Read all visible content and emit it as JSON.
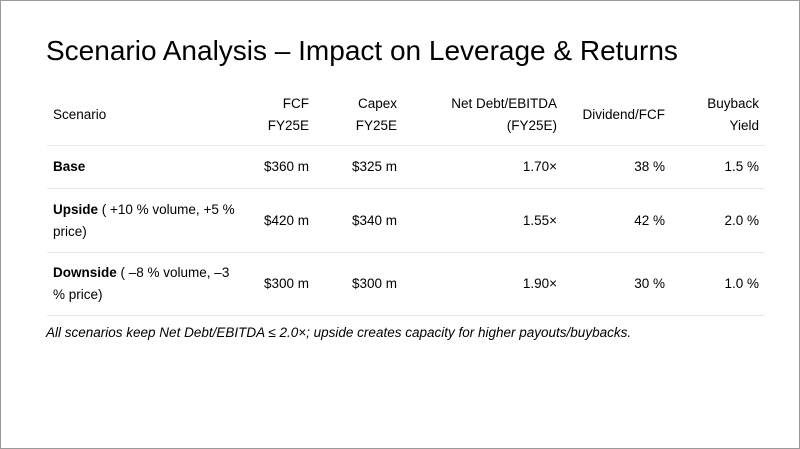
{
  "title": "Scenario Analysis – Impact on Leverage & Returns",
  "table": {
    "headers": [
      {
        "line1": "Scenario",
        "line2": ""
      },
      {
        "line1": "FCF",
        "line2": "FY25E"
      },
      {
        "line1": "Capex",
        "line2": "FY25E"
      },
      {
        "line1": "Net Debt/EBITDA",
        "line2": "(FY25E)"
      },
      {
        "line1": "Dividend/FCF",
        "line2": ""
      },
      {
        "line1": "Buyback",
        "line2": "Yield"
      }
    ],
    "rows": [
      {
        "name": "Base",
        "detail": "",
        "fcf": "$360 m",
        "capex": "$325 m",
        "net_debt_ebitda": "1.70×",
        "dividend_fcf": "38 %",
        "buyback_yield": "1.5 %"
      },
      {
        "name": "Upside",
        "detail": " ( +10 % volume, +5 % price)",
        "fcf": "$420 m",
        "capex": "$340 m",
        "net_debt_ebitda": "1.55×",
        "dividend_fcf": "42 %",
        "buyback_yield": "2.0 %"
      },
      {
        "name": "Downside",
        "detail": " ( –8 % volume, –3 % price)",
        "fcf": "$300 m",
        "capex": "$300 m",
        "net_debt_ebitda": "1.90×",
        "dividend_fcf": "30 %",
        "buyback_yield": "1.0 %"
      }
    ]
  },
  "footnote": "All scenarios keep Net Debt/EBITDA ≤ 2.0×; upside creates capacity for higher payouts/buybacks."
}
